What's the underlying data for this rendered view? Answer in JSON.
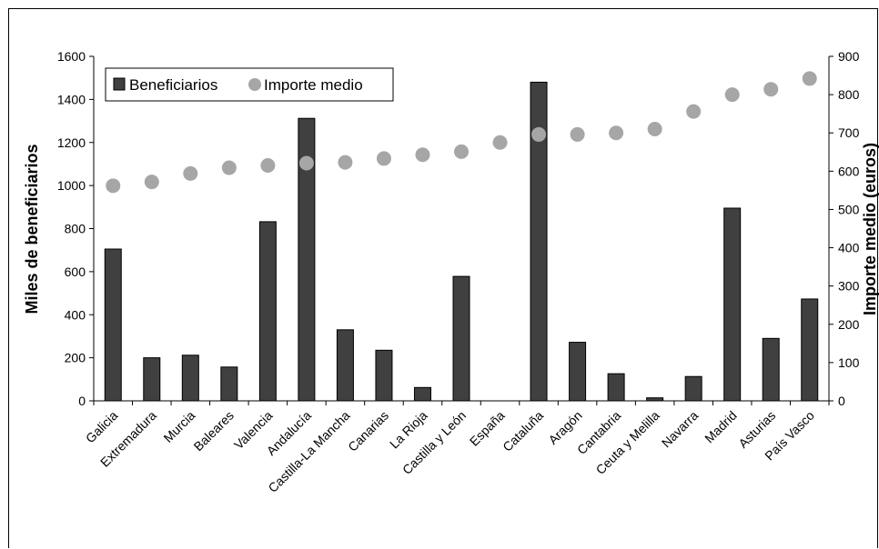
{
  "chart_data": {
    "type": "bar",
    "categories": [
      "Galicia",
      "Extremadura",
      "Murcia",
      "Baleares",
      "Valencia",
      "Andalucía",
      "Castilla-La Mancha",
      "Canarias",
      "La Rioja",
      "Castilla y León",
      "España",
      "Cataluña",
      "Aragón",
      "Cantabria",
      "Ceuta y Melilla",
      "Navarra",
      "Madrid",
      "Asturias",
      "País Vasco"
    ],
    "series": [
      {
        "name": "Beneficiarios",
        "type": "bar",
        "axis": "left",
        "color": "#404040",
        "values": [
          705,
          200,
          212,
          157,
          832,
          1312,
          330,
          235,
          62,
          578,
          null,
          1480,
          272,
          126,
          14,
          113,
          895,
          290,
          473
        ]
      },
      {
        "name": "Importe medio",
        "type": "scatter",
        "axis": "right",
        "color": "#a6a6a6",
        "values": [
          562,
          572,
          594,
          609,
          615,
          621,
          623,
          633,
          643,
          651,
          675,
          696,
          696,
          700,
          710,
          756,
          800,
          814,
          842
        ]
      }
    ],
    "ylabel": "Miles de beneficiarios",
    "y2label": "Importe medio (euros)",
    "ylim": [
      0,
      1600
    ],
    "y2lim": [
      0,
      900
    ],
    "yticks": [
      "0",
      "200",
      "400",
      "600",
      "800",
      "1000",
      "1200",
      "1400",
      "1600"
    ],
    "y2ticks": [
      "0",
      "100",
      "200",
      "300",
      "400",
      "500",
      "600",
      "700",
      "800",
      "900"
    ],
    "legend": {
      "position": "top-left",
      "entries": [
        "Beneficiarios",
        "Importe medio"
      ]
    },
    "grid": false
  }
}
